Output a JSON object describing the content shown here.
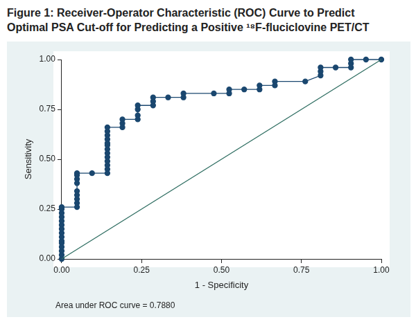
{
  "chart_data": {
    "type": "line",
    "title": "Figure 1: Receiver-Operator Characteristic (ROC) Curve to Predict Optimal PSA Cut-off for Predicting a Positive ¹⁸F-fluciclovine PET/CT",
    "x_label": "1 - Specificity",
    "y_label": "Sensitivity",
    "annotations": [
      "Area under ROC curve = 0.7880"
    ],
    "xlim": [
      0,
      1
    ],
    "ylim": [
      0,
      1
    ],
    "xticks": [
      {
        "value": 0,
        "label": "0.00"
      },
      {
        "value": 0.25,
        "label": "0.25"
      },
      {
        "value": 0.5,
        "label": "0.50"
      },
      {
        "value": 0.75,
        "label": "0.75"
      },
      {
        "value": 1,
        "label": "1.00"
      }
    ],
    "yticks": [
      {
        "value": 0,
        "label": "0.00"
      },
      {
        "value": 0.25,
        "label": "0.25"
      },
      {
        "value": 0.5,
        "label": "0.50"
      },
      {
        "value": 0.75,
        "label": "0.75"
      },
      {
        "value": 1,
        "label": "1.00"
      }
    ],
    "grid": false,
    "series": [
      {
        "color": "#1a476f",
        "marker": "circle",
        "line_style": "solid",
        "x": [
          0,
          0,
          0,
          0,
          0,
          0,
          0,
          0,
          0,
          0,
          0,
          0,
          0,
          0,
          0,
          0.048,
          0.048,
          0.048,
          0.048,
          0.048,
          0.048,
          0.048,
          0.048,
          0.048,
          0.095,
          0.143,
          0.143,
          0.143,
          0.143,
          0.143,
          0.143,
          0.143,
          0.143,
          0.143,
          0.143,
          0.143,
          0.143,
          0.143,
          0.19,
          0.19,
          0.19,
          0.238,
          0.238,
          0.238,
          0.238,
          0.286,
          0.286,
          0.286,
          0.333,
          0.381,
          0.381,
          0.476,
          0.524,
          0.524,
          0.571,
          0.619,
          0.619,
          0.667,
          0.667,
          0.762,
          0.81,
          0.81,
          0.81,
          0.857,
          0.905,
          0.905,
          0.905,
          0.952,
          1
        ],
        "values": [
          0,
          0.02,
          0.04,
          0.06,
          0.08,
          0.09,
          0.11,
          0.13,
          0.15,
          0.17,
          0.19,
          0.21,
          0.23,
          0.25,
          0.26,
          0.26,
          0.28,
          0.3,
          0.32,
          0.34,
          0.38,
          0.4,
          0.42,
          0.43,
          0.43,
          0.43,
          0.45,
          0.47,
          0.49,
          0.51,
          0.53,
          0.55,
          0.57,
          0.58,
          0.6,
          0.62,
          0.64,
          0.66,
          0.66,
          0.68,
          0.7,
          0.7,
          0.72,
          0.75,
          0.77,
          0.77,
          0.79,
          0.81,
          0.81,
          0.81,
          0.83,
          0.83,
          0.83,
          0.85,
          0.85,
          0.85,
          0.87,
          0.87,
          0.89,
          0.89,
          0.92,
          0.94,
          0.96,
          0.96,
          0.96,
          0.98,
          1,
          1,
          1
        ]
      },
      {
        "color": "#2f6e62",
        "marker": "none",
        "line_style": "solid",
        "x": [
          0,
          1
        ],
        "values": [
          0,
          1
        ]
      }
    ]
  }
}
